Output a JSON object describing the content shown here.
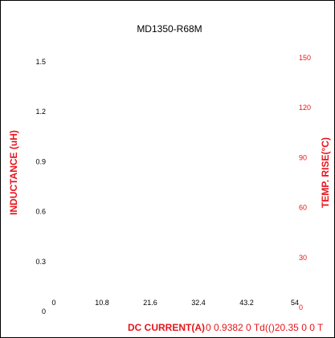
{
  "chart_data": {
    "type": "line",
    "title": "MD1350-R68M",
    "xlabel": "DC CURRENT(A)",
    "ylabel_left": "INDUCTANCE (uH)",
    "ylabel_right": "TEMP. RISE(°C)",
    "x_ticks": [
      "0",
      "10.8",
      "21.6",
      "32.4",
      "43.2",
      "54"
    ],
    "y_left_ticks": [
      "0",
      "0.3",
      "0.6",
      "0.9",
      "1.2",
      "1.5"
    ],
    "y_right_ticks": [
      "0",
      "30",
      "60",
      "90",
      "120",
      "150"
    ],
    "xlim": [
      0,
      54
    ],
    "ylim_left": [
      0,
      1.5
    ],
    "ylim_right": [
      0,
      150
    ],
    "grid": false,
    "series": [],
    "stray_text": "0 0.9382 0 Td(()20.35 0 0 T",
    "colors": {
      "left_axis": "#000000",
      "right_axis": "#e8141b",
      "label_accent": "#e8141b"
    }
  }
}
